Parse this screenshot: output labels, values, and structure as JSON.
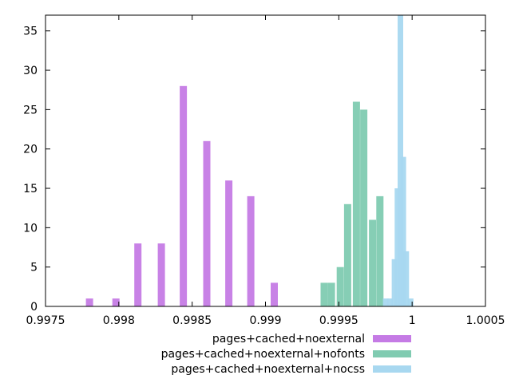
{
  "chart_data": {
    "type": "bar",
    "subtype": "histogram",
    "xlim": [
      0.9975,
      1.0005
    ],
    "ylim": [
      0,
      37
    ],
    "x_ticks": [
      {
        "value": 0.9975,
        "label": "0.9975"
      },
      {
        "value": 0.998,
        "label": "0.998"
      },
      {
        "value": 0.9985,
        "label": "0.9985"
      },
      {
        "value": 0.999,
        "label": "0.999"
      },
      {
        "value": 0.9995,
        "label": "0.9995"
      },
      {
        "value": 1.0,
        "label": "1"
      },
      {
        "value": 1.0005,
        "label": "1.0005"
      }
    ],
    "y_ticks": [
      {
        "value": 0,
        "label": "0"
      },
      {
        "value": 5,
        "label": "5"
      },
      {
        "value": 10,
        "label": "10"
      },
      {
        "value": 15,
        "label": "15"
      },
      {
        "value": 20,
        "label": "20"
      },
      {
        "value": 25,
        "label": "25"
      },
      {
        "value": 30,
        "label": "30"
      },
      {
        "value": 35,
        "label": "35"
      }
    ],
    "grid": false,
    "legend_position": "bottom-right, outside plot",
    "series": [
      {
        "name": "pages+cached+noexternal",
        "color": "#c57be5",
        "points": [
          {
            "x": 0.9978,
            "y": 1
          },
          {
            "x": 0.99798,
            "y": 1
          },
          {
            "x": 0.99813,
            "y": 8
          },
          {
            "x": 0.99829,
            "y": 8
          },
          {
            "x": 0.99844,
            "y": 28
          },
          {
            "x": 0.9986,
            "y": 21
          },
          {
            "x": 0.99875,
            "y": 16
          },
          {
            "x": 0.9989,
            "y": 14
          },
          {
            "x": 0.99906,
            "y": 3
          }
        ]
      },
      {
        "name": "pages+cached+noexternal+nofonts",
        "color": "#80cbb1",
        "points": [
          {
            "x": 0.9994,
            "y": 3
          },
          {
            "x": 0.99945,
            "y": 3
          },
          {
            "x": 0.99951,
            "y": 5
          },
          {
            "x": 0.99956,
            "y": 13
          },
          {
            "x": 0.99962,
            "y": 26
          },
          {
            "x": 0.99967,
            "y": 25
          },
          {
            "x": 0.99973,
            "y": 11
          },
          {
            "x": 0.99978,
            "y": 14
          }
        ]
      },
      {
        "name": "pages+cached+noexternal+nocss",
        "color": "#a8d8f0",
        "points": [
          {
            "x": 0.99982,
            "y": 1
          },
          {
            "x": 0.99985,
            "y": 1
          },
          {
            "x": 0.99988,
            "y": 6
          },
          {
            "x": 0.9999,
            "y": 15
          },
          {
            "x": 0.99992,
            "y": 37
          },
          {
            "x": 0.99994,
            "y": 19
          },
          {
            "x": 0.99996,
            "y": 7
          },
          {
            "x": 0.99999,
            "y": 1
          }
        ]
      }
    ]
  }
}
